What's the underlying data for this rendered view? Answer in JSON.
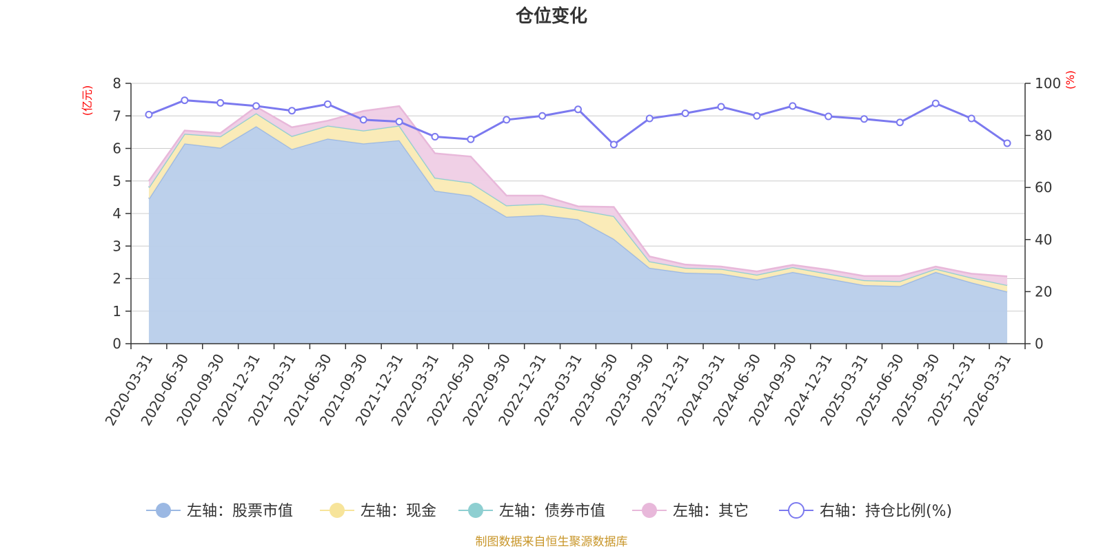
{
  "chart_data": {
    "type": "area",
    "title": "仓位变化",
    "left_unit": "(亿元)",
    "right_unit": "(%)",
    "categories": [
      "2020-03-31",
      "2020-06-30",
      "2020-09-30",
      "2020-12-31",
      "2021-03-31",
      "2021-06-30",
      "2021-09-30",
      "2021-12-31",
      "2022-03-31",
      "2022-06-30",
      "2022-09-30",
      "2022-12-31",
      "2023-03-31",
      "2023-06-30",
      "2023-09-30",
      "2023-12-31",
      "2024-03-31",
      "2024-06-30",
      "2024-09-30",
      "2024-12-31",
      "2025-03-31",
      "2025-06-30",
      "2025-09-30",
      "2025-12-31",
      "2026-03-31"
    ],
    "left_axis": {
      "min": 0,
      "max": 8,
      "ticks": [
        0,
        1,
        2,
        3,
        4,
        5,
        6,
        7,
        8
      ]
    },
    "right_axis": {
      "min": 0,
      "max": 100,
      "ticks": [
        0,
        20,
        40,
        60,
        80,
        100
      ]
    },
    "series": [
      {
        "name": "左轴：股票市值",
        "axis": "left",
        "stack": true,
        "color": "#9bb8e3",
        "fill": "#b8cdea",
        "values": [
          4.45,
          6.15,
          6.02,
          6.68,
          5.98,
          6.3,
          6.15,
          6.25,
          4.7,
          4.55,
          3.9,
          3.95,
          3.82,
          3.22,
          2.33,
          2.18,
          2.15,
          1.97,
          2.2,
          2.0,
          1.8,
          1.77,
          2.2,
          1.88,
          1.6
        ]
      },
      {
        "name": "左轴：现金",
        "axis": "left",
        "stack": true,
        "color": "#f7e49a",
        "fill": "#faeab4",
        "values": [
          0.35,
          0.3,
          0.35,
          0.4,
          0.4,
          0.4,
          0.4,
          0.45,
          0.4,
          0.4,
          0.35,
          0.35,
          0.3,
          0.7,
          0.2,
          0.15,
          0.15,
          0.15,
          0.15,
          0.15,
          0.15,
          0.15,
          0.1,
          0.15,
          0.2
        ]
      },
      {
        "name": "左轴：债券市值",
        "axis": "left",
        "stack": true,
        "color": "#8ecfd1",
        "fill": "#a9dcdd",
        "values": [
          0,
          0,
          0,
          0,
          0,
          0,
          0,
          0,
          0,
          0,
          0,
          0,
          0,
          0,
          0,
          0,
          0,
          0,
          0,
          0,
          0,
          0,
          0,
          0,
          0
        ]
      },
      {
        "name": "左轴：其它",
        "axis": "left",
        "stack": true,
        "color": "#e8b8da",
        "fill": "#efcde5",
        "values": [
          0.2,
          0.1,
          0.1,
          0.2,
          0.27,
          0.15,
          0.6,
          0.6,
          0.75,
          0.8,
          0.3,
          0.25,
          0.1,
          0.28,
          0.15,
          0.1,
          0.07,
          0.1,
          0.07,
          0.12,
          0.13,
          0.16,
          0.07,
          0.12,
          0.27
        ]
      },
      {
        "name": "右轴：持仓比例(%)",
        "axis": "right",
        "type": "line",
        "color": "#7b79ef",
        "values": [
          88,
          93.5,
          92.5,
          91.3,
          89.5,
          92,
          86,
          85.3,
          79.5,
          78.5,
          86,
          87.5,
          90,
          76.5,
          86.5,
          88.5,
          91,
          87.5,
          91.3,
          87.3,
          86.3,
          85,
          92.3,
          86.5,
          77
        ]
      }
    ]
  },
  "footer": {
    "source": "制图数据来自恒生聚源数据库"
  }
}
